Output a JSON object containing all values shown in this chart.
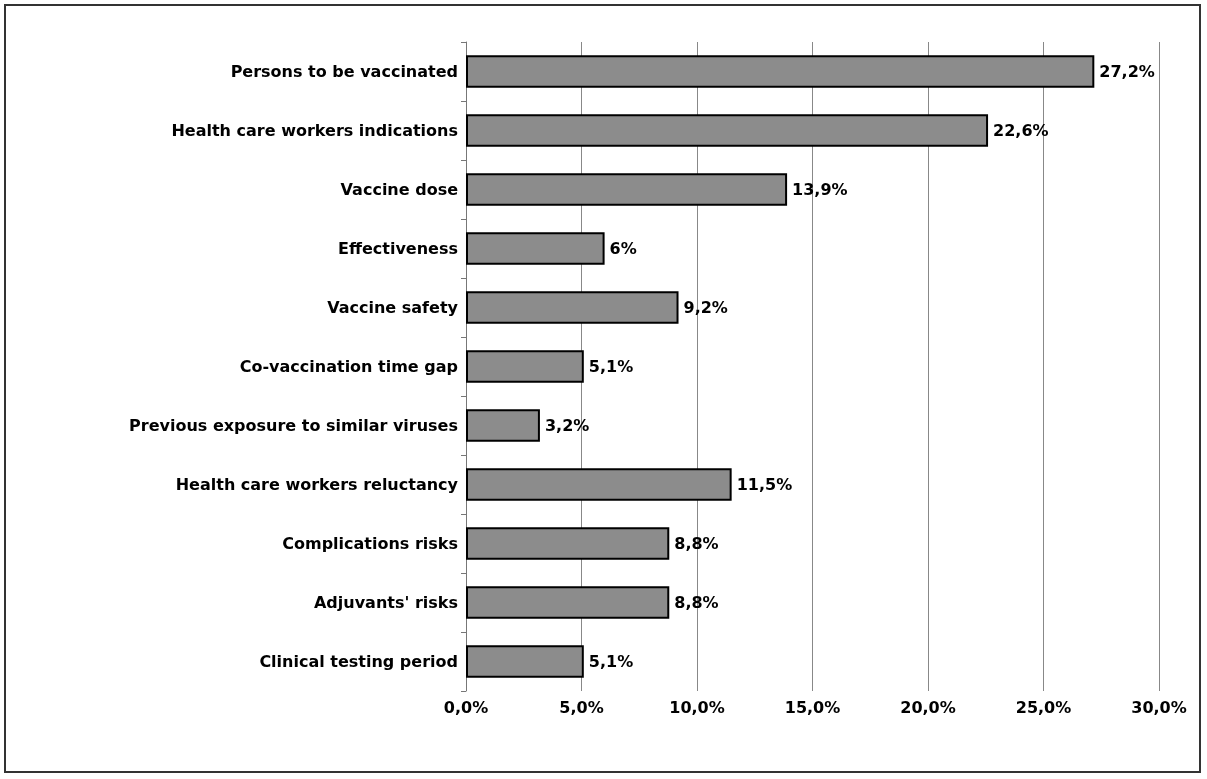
{
  "chart_data": {
    "type": "bar",
    "orientation": "horizontal",
    "categories": [
      "Persons to be vaccinated",
      "Health care workers indications",
      "Vaccine dose",
      "Effectiveness",
      "Vaccine safety",
      "Co-vaccination time gap",
      "Previous exposure to similar viruses",
      "Health care workers reluctancy",
      "Complications risks",
      "Adjuvants' risks",
      "Clinical testing period"
    ],
    "values": [
      27.2,
      22.6,
      13.9,
      6,
      9.2,
      5.1,
      3.2,
      11.5,
      8.8,
      8.8,
      5.1
    ],
    "value_labels": [
      "27,2%",
      "22,6%",
      "13,9%",
      "6%",
      "9,2%",
      "5,1%",
      "3,2%",
      "11,5%",
      "8,8%",
      "8,8%",
      "5,1%"
    ],
    "color": "#8c8c8c",
    "xlim": [
      0,
      30
    ],
    "xticks": [
      {
        "value": 0,
        "label": "0,0%"
      },
      {
        "value": 5,
        "label": "5,0%"
      },
      {
        "value": 10,
        "label": "10,0%"
      },
      {
        "value": 15,
        "label": "15,0%"
      },
      {
        "value": 20,
        "label": "20,0%"
      },
      {
        "value": 25,
        "label": "25,0%"
      },
      {
        "value": 30,
        "label": "30,0%"
      }
    ],
    "grid": "x"
  }
}
